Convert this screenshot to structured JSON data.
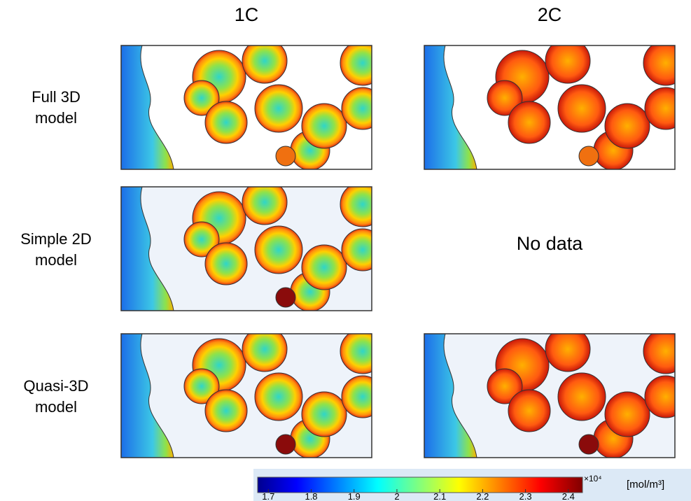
{
  "columns": [
    "1C",
    "2C"
  ],
  "rows": [
    [
      "Full 3D",
      "model"
    ],
    [
      "Simple 2D",
      "model"
    ],
    [
      "Quasi-3D",
      "model"
    ]
  ],
  "no_data": "No data",
  "colorbar": {
    "lim": [
      1.675,
      2.433
    ],
    "ticks": [
      1.7,
      1.8,
      1.9,
      2,
      2.1,
      2.2,
      2.3,
      2.4
    ],
    "multiplier": "×10⁴",
    "unit": "[mol/m³]"
  }
}
